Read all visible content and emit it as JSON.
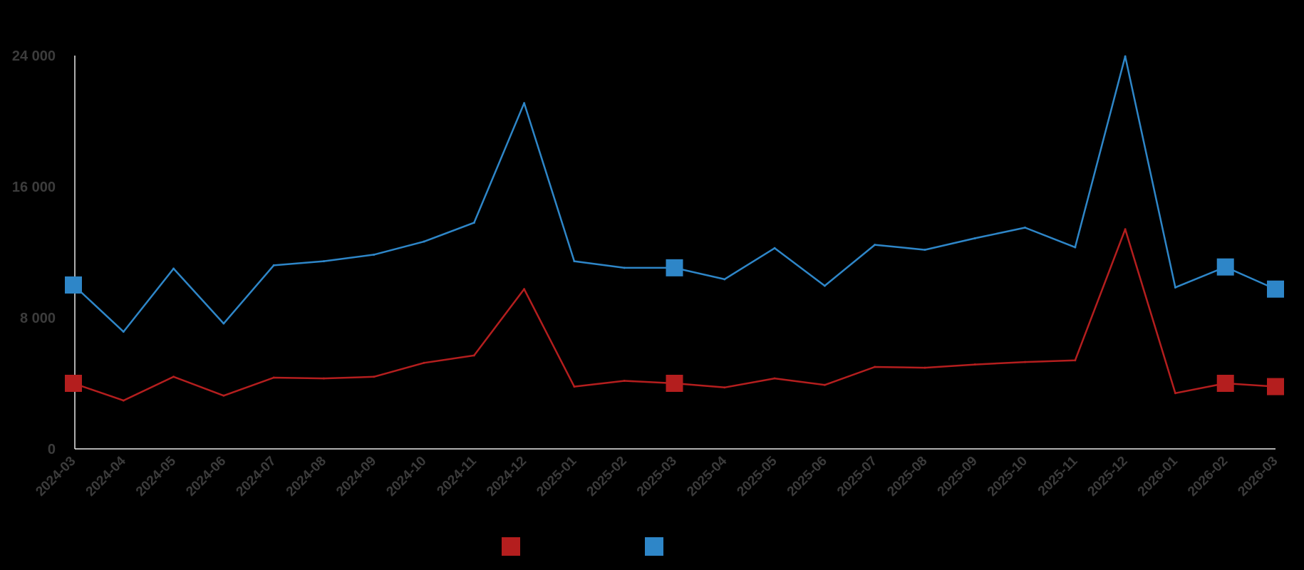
{
  "chart_data": {
    "type": "line",
    "x": [
      "2024-03",
      "2024-04",
      "2024-05",
      "2024-06",
      "2024-07",
      "2024-08",
      "2024-09",
      "2024-10",
      "2024-11",
      "2024-12",
      "2025-01",
      "2025-02",
      "2025-03",
      "2025-04",
      "2025-05",
      "2025-06",
      "2025-07",
      "2025-08",
      "2025-09",
      "2025-10",
      "2025-11",
      "2025-12",
      "2026-01",
      "2026-02",
      "2026-03"
    ],
    "series": [
      {
        "color": "#b41e1e",
        "values": [
          4000,
          2950,
          4400,
          3250,
          4350,
          4300,
          4400,
          5250,
          5700,
          9750,
          3800,
          4150,
          4000,
          3750,
          4300,
          3900,
          5000,
          4950,
          5150,
          5300,
          5400,
          13400,
          3400,
          4000,
          3800
        ],
        "markers_at": [
          "2024-03",
          "2025-03",
          "2026-02",
          "2026-03"
        ]
      },
      {
        "color": "#2e86c8",
        "values": [
          10000,
          7150,
          11000,
          7650,
          11200,
          11450,
          11850,
          12650,
          13800,
          21100,
          11450,
          11050,
          11050,
          10350,
          12250,
          9950,
          12450,
          12150,
          12850,
          13500,
          12300,
          23950,
          9850,
          11100,
          9750
        ],
        "markers_at": [
          "2024-03",
          "2025-03",
          "2026-02",
          "2026-03"
        ]
      }
    ],
    "yticks": [
      "0",
      "8 000",
      "16 000",
      "24 000"
    ],
    "ylim": [
      0,
      24000
    ],
    "grid": false,
    "legend_position": "bottom-center"
  }
}
